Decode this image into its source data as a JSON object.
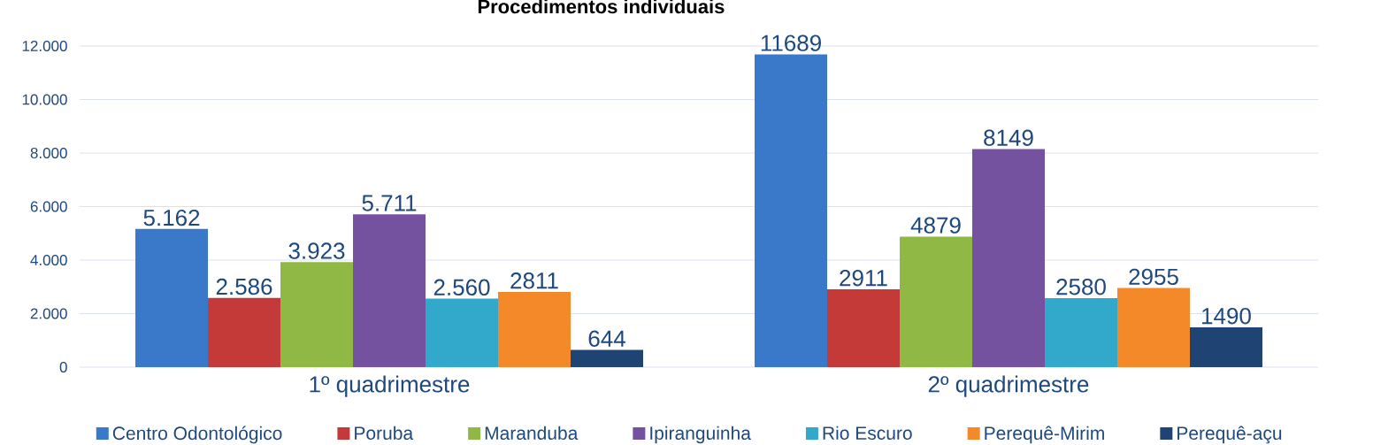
{
  "chart_data": {
    "type": "bar",
    "title": "Procedimentos individuais",
    "categories": [
      "1º quadrimestre",
      "2º quadrimestre"
    ],
    "series": [
      {
        "name": "Centro Odontológico",
        "color": "#3a78c9",
        "values": [
          5162,
          11689
        ],
        "value_labels": [
          "5.162",
          "11689"
        ]
      },
      {
        "name": "Poruba",
        "color": "#c43a39",
        "values": [
          2586,
          2911
        ],
        "value_labels": [
          "2.586",
          "2911"
        ]
      },
      {
        "name": "Maranduba",
        "color": "#90b844",
        "values": [
          3923,
          4879
        ],
        "value_labels": [
          "3.923",
          "4879"
        ]
      },
      {
        "name": "Ipiranguinha",
        "color": "#7452a0",
        "values": [
          5711,
          8149
        ],
        "value_labels": [
          "5.711",
          "8149"
        ]
      },
      {
        "name": "Rio Escuro",
        "color": "#32a9cb",
        "values": [
          2560,
          2580
        ],
        "value_labels": [
          "2.560",
          "2580"
        ]
      },
      {
        "name": "Perequê-Mirim",
        "color": "#f4892a",
        "values": [
          2811,
          2955
        ],
        "value_labels": [
          "2811",
          "2955"
        ]
      },
      {
        "name": "Perequê-açu",
        "color": "#1f4373",
        "values": [
          644,
          1490
        ],
        "value_labels": [
          "644",
          "1490"
        ]
      }
    ],
    "ylim": [
      0,
      12000
    ],
    "yticks": [
      0,
      {
        "value": 2000,
        "label": "2.000"
      },
      {
        "value": 4000,
        "label": "4.000"
      },
      {
        "value": 6000,
        "label": "6.000"
      },
      {
        "value": 8000,
        "label": "8.000"
      },
      {
        "value": 10000,
        "label": "10.000"
      },
      {
        "value": 12000,
        "label": "12.000"
      }
    ],
    "grid": "y",
    "legend": "bottom"
  }
}
